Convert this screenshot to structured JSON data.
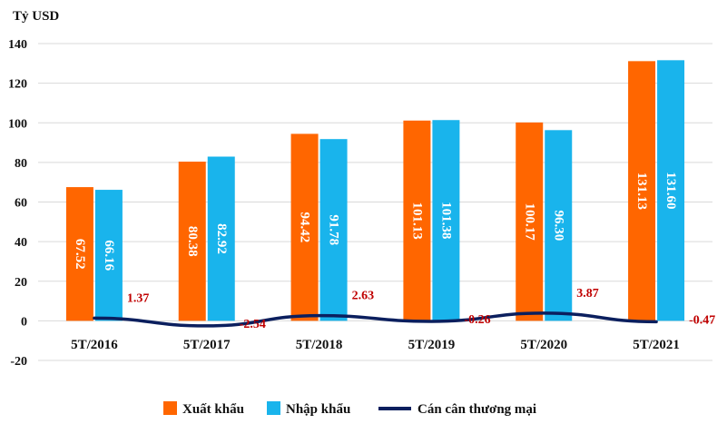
{
  "chart_data": {
    "type": "bar",
    "ylabel": "Tỷ USD",
    "ylim": [
      -20,
      140
    ],
    "yticks": [
      -20,
      0,
      20,
      40,
      60,
      80,
      100,
      120,
      140
    ],
    "grid": true,
    "legend_position": "bottom",
    "categories": [
      "5T/2016",
      "5T/2017",
      "5T/2018",
      "5T/2019",
      "5T/2020",
      "5T/2021"
    ],
    "series": [
      {
        "name": "Xuất khẩu",
        "type": "bar",
        "color": "#FF6600",
        "values": [
          67.52,
          80.38,
          94.42,
          101.13,
          100.17,
          131.13
        ],
        "labels": [
          "67.52",
          "80.38",
          "94.42",
          "101.13",
          "100.17",
          "131.13"
        ]
      },
      {
        "name": "Nhập khẩu",
        "type": "bar",
        "color": "#19B4EC",
        "values": [
          66.16,
          82.92,
          91.78,
          101.38,
          96.3,
          131.6
        ],
        "labels": [
          "66.16",
          "82.92",
          "91.78",
          "101.38",
          "96.30",
          "131.60"
        ]
      },
      {
        "name": "Cán cân thương mại",
        "type": "line",
        "color": "#0B1F5E",
        "label_color": "#C00000",
        "values": [
          1.37,
          -2.54,
          2.63,
          -0.26,
          3.87,
          -0.47
        ],
        "labels": [
          "1.37",
          "-2.54",
          "2.63",
          "-0.26",
          "3.87",
          "-0.47"
        ]
      }
    ]
  }
}
